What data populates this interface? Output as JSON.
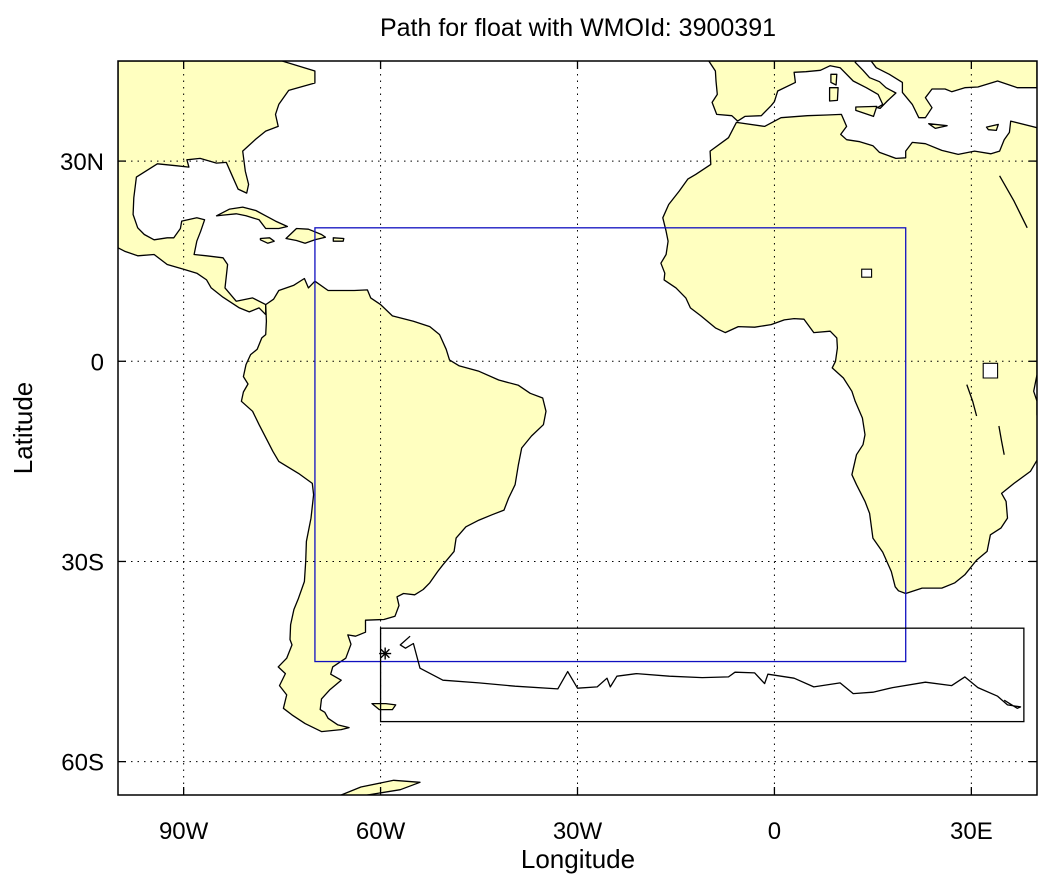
{
  "title": "Path for float with WMOId: 3900391",
  "xlabel": "Longitude",
  "ylabel": "Latitude",
  "colors": {
    "land": "#ffffc0",
    "ocean": "#ffffff",
    "coast": "#000000",
    "region_box": "#1010c0",
    "track_box": "#000000",
    "track": "#000000"
  },
  "chart_data": {
    "type": "map",
    "projection": "equirectangular",
    "xlim": [
      -100,
      40
    ],
    "ylim": [
      -65,
      45
    ],
    "grid": true,
    "x_ticks": [
      {
        "value": -90,
        "label": "90W"
      },
      {
        "value": -60,
        "label": "60W"
      },
      {
        "value": -30,
        "label": "30W"
      },
      {
        "value": 0,
        "label": "0"
      },
      {
        "value": 30,
        "label": "30E"
      }
    ],
    "y_ticks": [
      {
        "value": 30,
        "label": "30N"
      },
      {
        "value": 0,
        "label": "0"
      },
      {
        "value": -30,
        "label": "30S"
      },
      {
        "value": -60,
        "label": "60S"
      }
    ],
    "region_box": {
      "lon_min": -70,
      "lon_max": 20,
      "lat_min": -45,
      "lat_max": 20
    },
    "track_box": {
      "lon_min": -60,
      "lon_max": 38,
      "lat_min": -54,
      "lat_max": -40
    },
    "start_marker": {
      "lon": -59.3,
      "lat": -43.8,
      "symbol": "asterisk"
    },
    "track": [
      [
        -55.5,
        -41.2
      ],
      [
        -57.0,
        -42.5
      ],
      [
        -56.2,
        -43.0
      ],
      [
        -55.0,
        -42.3
      ],
      [
        -54.0,
        -46.0
      ],
      [
        -50.5,
        -47.8
      ],
      [
        -45.0,
        -48.2
      ],
      [
        -39.5,
        -48.7
      ],
      [
        -33.0,
        -49.1
      ],
      [
        -31.5,
        -46.5
      ],
      [
        -30.0,
        -49.0
      ],
      [
        -27.0,
        -48.8
      ],
      [
        -25.5,
        -47.5
      ],
      [
        -25.0,
        -48.8
      ],
      [
        -24.0,
        -47.2
      ],
      [
        -21.0,
        -46.8
      ],
      [
        -16.0,
        -47.2
      ],
      [
        -11.0,
        -47.4
      ],
      [
        -7.0,
        -47.3
      ],
      [
        -6.0,
        -46.6
      ],
      [
        -3.0,
        -46.7
      ],
      [
        -1.5,
        -48.3
      ],
      [
        -1.0,
        -46.9
      ],
      [
        3.0,
        -47.5
      ],
      [
        6.0,
        -48.8
      ],
      [
        10.0,
        -48.2
      ],
      [
        12.0,
        -49.8
      ],
      [
        15.0,
        -49.6
      ],
      [
        18.0,
        -48.9
      ],
      [
        23.0,
        -48.1
      ],
      [
        27.0,
        -48.6
      ],
      [
        29.0,
        -47.3
      ],
      [
        31.0,
        -48.9
      ],
      [
        34.0,
        -50.2
      ],
      [
        35.5,
        -51.5
      ],
      [
        37.5,
        -51.8
      ],
      [
        37.0,
        -52.0
      ],
      [
        35.0,
        -50.8
      ]
    ]
  }
}
